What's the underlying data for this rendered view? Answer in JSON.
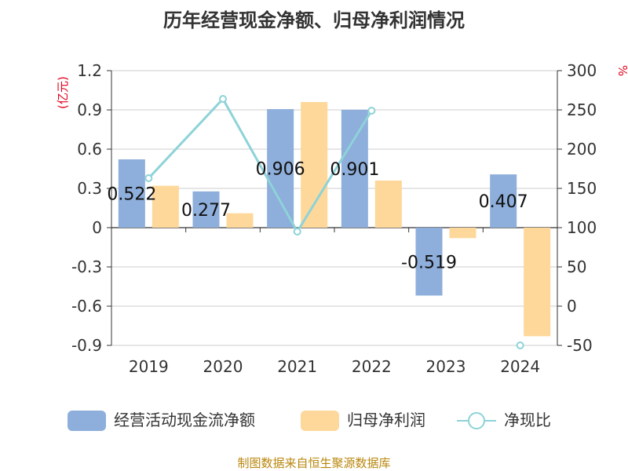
{
  "chart_data": {
    "type": "bar",
    "title": "历年经营现金净额、归母净利润情况",
    "categories": [
      "2019",
      "2020",
      "2021",
      "2022",
      "2023",
      "2024"
    ],
    "series": [
      {
        "name": "经营活动现金流净额",
        "type": "bar",
        "axis": "left",
        "color": "#8eaedb",
        "values": [
          0.522,
          0.277,
          0.906,
          0.901,
          -0.519,
          0.407
        ],
        "labels": [
          "0.522",
          "0.277",
          "0.906",
          "0.901",
          "-0.519",
          "0.407"
        ]
      },
      {
        "name": "归母净利润",
        "type": "bar",
        "axis": "left",
        "color": "#fdd89a",
        "values": [
          0.32,
          0.11,
          0.96,
          0.36,
          -0.08,
          -0.83
        ]
      },
      {
        "name": "净现比",
        "type": "line",
        "axis": "right",
        "color": "#8dd3d8",
        "values": [
          163,
          264,
          95,
          249,
          null,
          -50
        ]
      }
    ],
    "y_left": {
      "unit": "(亿元)",
      "ticks": [
        "1.2",
        "0.9",
        "0.6",
        "0.3",
        "0",
        "-0.3",
        "-0.6",
        "-0.9"
      ],
      "min": -0.9,
      "max": 1.2
    },
    "y_right": {
      "unit": "%",
      "ticks": [
        "300",
        "250",
        "200",
        "150",
        "100",
        "50",
        "0",
        "-50"
      ],
      "min": -50,
      "max": 300
    },
    "grid": true,
    "legend_position": "bottom"
  },
  "source": "制图数据来自恒生聚源数据库"
}
